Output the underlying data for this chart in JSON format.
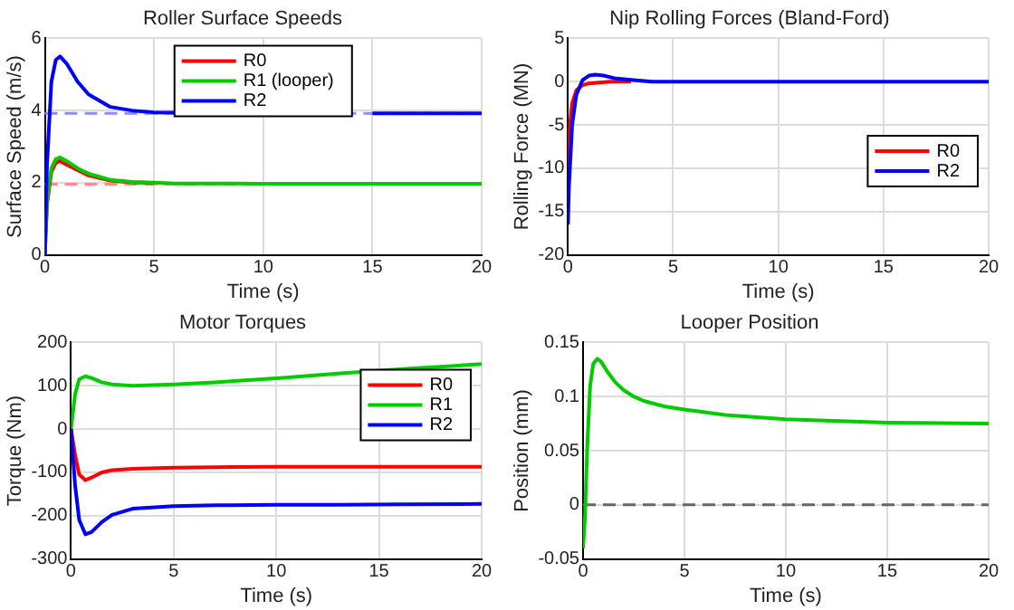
{
  "chart_data": [
    {
      "type": "line",
      "title": "Roller Surface Speeds",
      "xlabel": "Time (s)",
      "ylabel": "Surface Speed (m/s)",
      "xlim": [
        0,
        20
      ],
      "xticks": [
        0,
        5,
        10,
        15,
        20
      ],
      "ylim": [
        0,
        6
      ],
      "yticks": [
        0,
        2,
        4,
        6
      ],
      "grid": true,
      "legend": "top",
      "marker": "none",
      "x": [
        0,
        0.1,
        0.3,
        0.5,
        0.7,
        1,
        1.5,
        2,
        3,
        4,
        5,
        6,
        7,
        10,
        15,
        20
      ],
      "series": [
        {
          "name": "R0",
          "color": "#ff0000",
          "values": [
            0,
            1.4,
            2.3,
            2.55,
            2.6,
            2.5,
            2.35,
            2.2,
            2.06,
            2.01,
            1.99,
            null,
            null,
            null,
            null,
            null
          ]
        },
        {
          "name": "R1 (looper)",
          "color": "#00cc00",
          "values": [
            0,
            1.5,
            2.4,
            2.65,
            2.7,
            2.6,
            2.4,
            2.25,
            2.08,
            2.02,
            2,
            1.98,
            1.98,
            1.97,
            1.97,
            1.97
          ]
        },
        {
          "name": "R2",
          "color": "#0000ff",
          "values": [
            0,
            2.5,
            4.8,
            5.4,
            5.5,
            5.3,
            4.8,
            4.45,
            4.1,
            4,
            3.95,
            3.94,
            null,
            null,
            3.92,
            3.92
          ]
        }
      ],
      "ref_lines": [
        {
          "axis": "y",
          "value": 3.92,
          "color": "#8c8cff",
          "line_style": "dashed"
        },
        {
          "axis": "y",
          "value": 1.96,
          "color": "#ff8c8c",
          "line_style": "dashed"
        }
      ]
    },
    {
      "type": "line",
      "title": "Nip Rolling Forces (Bland-Ford)",
      "xlabel": "Time (s)",
      "ylabel": "Rolling Force (MN)",
      "xlim": [
        0,
        20
      ],
      "xticks": [
        0,
        5,
        10,
        15,
        20
      ],
      "ylim": [
        -20,
        5
      ],
      "yticks": [
        -20,
        -15,
        -10,
        -5,
        0,
        5
      ],
      "grid": true,
      "legend": "right",
      "marker": "none",
      "series": [
        {
          "name": "R0",
          "color": "#ff0000",
          "x": [
            0,
            0.05,
            0.2,
            0.4,
            0.7,
            1,
            1.5,
            2,
            3
          ],
          "values": [
            -10,
            -6,
            -2.5,
            -1,
            -0.4,
            -0.2,
            -0.1,
            0,
            0
          ]
        },
        {
          "name": "R2",
          "color": "#0000ff",
          "x": [
            0,
            0.05,
            0.2,
            0.4,
            0.7,
            1,
            1.3,
            1.7,
            2.2,
            3,
            4,
            5,
            20
          ],
          "values": [
            -16.5,
            -12,
            -5,
            -1.5,
            0.2,
            0.7,
            0.8,
            0.7,
            0.4,
            0.2,
            0,
            0,
            0
          ]
        }
      ]
    },
    {
      "type": "line",
      "title": "Motor Torques",
      "xlabel": "Time (s)",
      "ylabel": "Torque (Nm)",
      "xlim": [
        0,
        20
      ],
      "xticks": [
        0,
        5,
        10,
        15,
        20
      ],
      "ylim": [
        -300,
        200
      ],
      "yticks": [
        -300,
        -200,
        -100,
        0,
        100,
        200
      ],
      "grid": true,
      "legend": "top right",
      "marker": "none",
      "x": [
        0,
        0.2,
        0.4,
        0.7,
        1,
        1.5,
        2,
        3,
        5,
        7,
        10,
        13,
        16,
        20
      ],
      "series": [
        {
          "name": "R0",
          "color": "#ff0000",
          "values": [
            0,
            -60,
            -105,
            -118,
            -112,
            -100,
            -95,
            -92,
            -89,
            -88,
            -87,
            -87,
            -87,
            -87
          ]
        },
        {
          "name": "R1",
          "color": "#00cc00",
          "values": [
            0,
            80,
            115,
            122,
            118,
            108,
            103,
            100,
            103,
            108,
            117,
            128,
            138,
            150
          ]
        },
        {
          "name": "R2",
          "color": "#0000ff",
          "values": [
            0,
            -130,
            -210,
            -243,
            -238,
            -215,
            -198,
            -184,
            -178,
            -176,
            -175,
            -175,
            -174,
            -173
          ]
        }
      ]
    },
    {
      "type": "line",
      "title": "Looper Position",
      "xlabel": "Time (s)",
      "ylabel": "Position (mm)",
      "xlim": [
        0,
        20
      ],
      "xticks": [
        0,
        5,
        10,
        15,
        20
      ],
      "ylim": [
        -0.05,
        0.15
      ],
      "yticks": [
        -0.05,
        0,
        0.05,
        0.1,
        0.15
      ],
      "grid": true,
      "marker": "none",
      "x": [
        0,
        0.1,
        0.2,
        0.35,
        0.5,
        0.7,
        0.9,
        1.2,
        1.6,
        2,
        2.5,
        3,
        4,
        5,
        7,
        10,
        15,
        20
      ],
      "series": [
        {
          "color": "#00cc00",
          "values": [
            -0.04,
            -0.01,
            0.05,
            0.11,
            0.13,
            0.135,
            0.132,
            0.123,
            0.113,
            0.106,
            0.1,
            0.096,
            0.091,
            0.088,
            0.083,
            0.079,
            0.076,
            0.075
          ]
        }
      ],
      "ref_lines": [
        {
          "axis": "y",
          "value": 0,
          "color": "#666666",
          "line_style": "dashed"
        }
      ]
    }
  ]
}
